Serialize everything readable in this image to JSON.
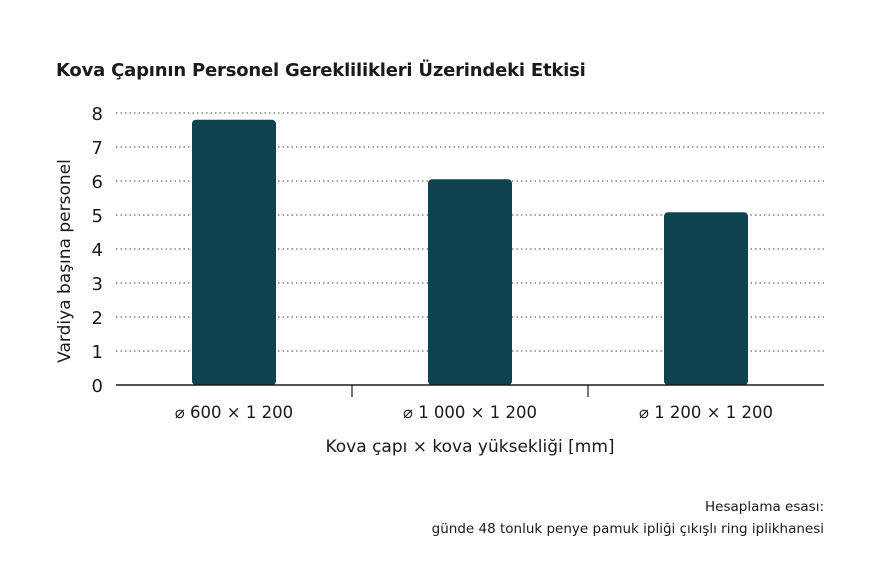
{
  "chart_data": {
    "type": "bar",
    "title": "Kova Çapının Personel Gereklilikleri Üzerindeki Etkisi",
    "categories": [
      "⌀ 600 × 1 200",
      "⌀ 1 000 × 1 200",
      "⌀ 1 200 × 1 200"
    ],
    "values": [
      7.8,
      6.05,
      5.08
    ],
    "xlabel": "Kova çapı × kova yüksekliği [mm]",
    "ylabel": "Vardiya başına personel",
    "ylim": [
      0,
      8
    ],
    "yticks": [
      "0",
      "1",
      "2",
      "3",
      "4",
      "5",
      "6",
      "7",
      "8"
    ],
    "grid": true,
    "bar_color": "#0d424f"
  },
  "note": {
    "line1": "Hesaplama esası:",
    "line2": "günde 48 tonluk penye pamuk ipliği çıkışlı ring iplikhanesi"
  }
}
